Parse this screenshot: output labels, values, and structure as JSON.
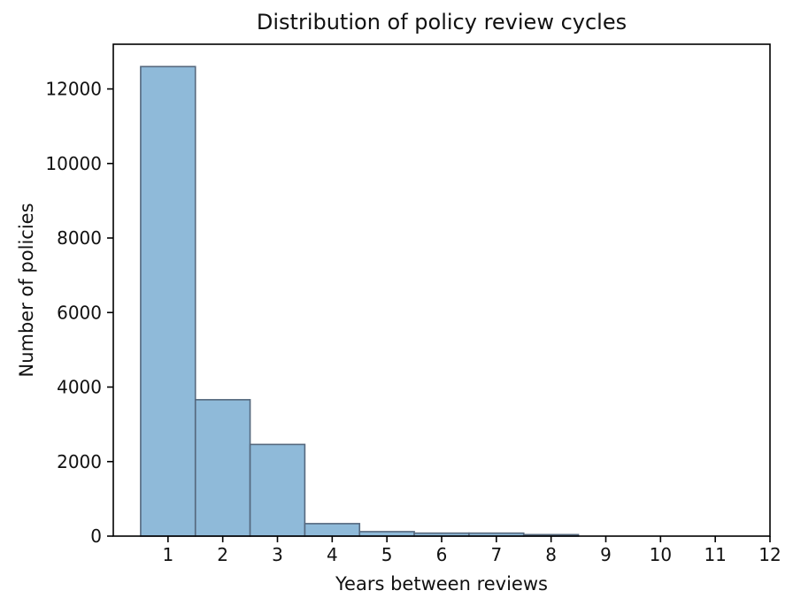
{
  "chart_data": {
    "type": "bar",
    "subtype": "histogram",
    "title": "Distribution of policy review cycles",
    "xlabel": "Years between reviews",
    "ylabel": "Number of policies",
    "bin_centers": [
      1,
      2,
      3,
      4,
      5,
      6,
      7,
      8
    ],
    "bin_width": 1,
    "values": [
      12600,
      3660,
      2460,
      335,
      120,
      80,
      80,
      40
    ],
    "xticks": [
      1,
      2,
      3,
      4,
      5,
      6,
      7,
      8,
      9,
      10,
      11,
      12
    ],
    "yticks": [
      0,
      2000,
      4000,
      6000,
      8000,
      10000,
      12000
    ],
    "xlim": [
      0,
      12
    ],
    "ylim": [
      0,
      13200
    ],
    "grid": false,
    "legend": null,
    "bar_fill_color": "#8fbad9",
    "bar_edge_color": "#55687e",
    "spine_color": "#000000",
    "text_color": "#111111"
  }
}
